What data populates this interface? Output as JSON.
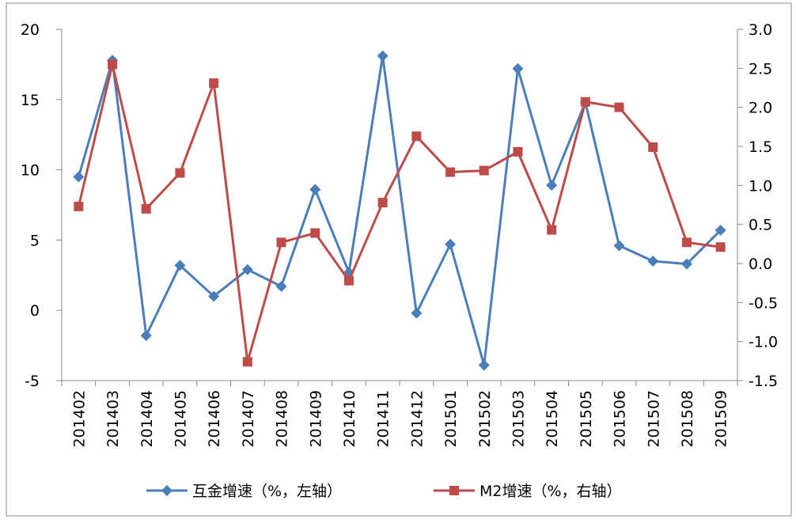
{
  "chart_data": {
    "type": "line",
    "categories": [
      "201402",
      "201403",
      "201404",
      "201405",
      "201406",
      "201407",
      "201408",
      "201409",
      "201410",
      "201411",
      "201412",
      "201501",
      "201502",
      "201503",
      "201504",
      "201505",
      "201506",
      "201507",
      "201508",
      "201509"
    ],
    "series": [
      {
        "name": "互金增速（%，左轴）",
        "color": "#4a7ebb",
        "marker": "diamond",
        "axis": "y",
        "values": [
          9.5,
          17.8,
          -1.8,
          3.2,
          1.0,
          2.9,
          1.7,
          8.6,
          2.7,
          18.1,
          -0.2,
          4.7,
          -3.9,
          17.2,
          8.9,
          14.8,
          4.6,
          3.5,
          3.3,
          5.7
        ]
      },
      {
        "name": "M2增速（%，右轴）",
        "color": "#be4b48",
        "marker": "square",
        "axis": "y2",
        "values": [
          0.73,
          2.55,
          0.7,
          1.16,
          2.31,
          -1.26,
          0.27,
          0.39,
          -0.22,
          0.78,
          1.63,
          1.17,
          1.19,
          1.43,
          0.43,
          2.07,
          2.0,
          1.49,
          0.27,
          0.21
        ]
      }
    ],
    "ylim": [
      -5,
      20
    ],
    "yticks": [
      -5,
      0,
      5,
      10,
      15,
      20
    ],
    "y2lim": [
      -1.5,
      3
    ],
    "y2ticks": [
      -1.5,
      {
        "value": -1,
        "label": "-1.0"
      },
      -0.5,
      {
        "value": 0,
        "label": "0.0"
      },
      0.5,
      {
        "value": 1,
        "label": "1.0"
      },
      1.5,
      {
        "value": 2,
        "label": "2.0"
      },
      2.5,
      {
        "value": 3,
        "label": "3.0"
      }
    ],
    "legend": "bottom"
  }
}
